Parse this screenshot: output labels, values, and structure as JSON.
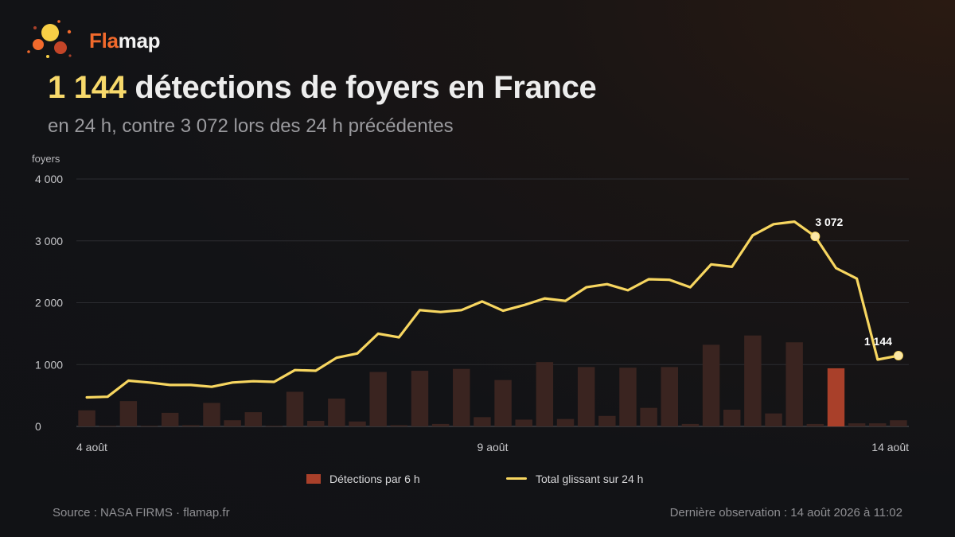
{
  "brand": {
    "name_part1": "Fla",
    "name_part2": "map",
    "logo_icon": "flamap-logo-icon"
  },
  "header": {
    "title_highlight": "1 144",
    "title_rest": " détections de foyers en France",
    "subtitle": "en 24 h, contre 3 072 lors des 24 h précédentes"
  },
  "colors": {
    "bar": "#a9402a",
    "bar_muted": "#3a2420",
    "line": "#f7d660",
    "grid": "#2c2d31",
    "accent": "#f26a2c"
  },
  "chart_data": {
    "type": "bar+line",
    "ylabel": "foyers",
    "ylim": [
      0,
      4000
    ],
    "yticks": [
      0,
      1000,
      2000,
      3000,
      4000
    ],
    "ytick_labels": [
      "0",
      "1 000",
      "2 000",
      "3 000",
      "4 000"
    ],
    "xtick_labels": [
      {
        "label": "4 août",
        "index": 0
      },
      {
        "label": "9 août",
        "index": 20
      },
      {
        "label": "14 août",
        "index": 40
      }
    ],
    "interval": "6 h",
    "series": [
      {
        "name": "Détections par 6 h",
        "type": "bar",
        "values": [
          260,
          10,
          410,
          10,
          220,
          20,
          380,
          100,
          230,
          10,
          560,
          90,
          450,
          80,
          880,
          20,
          900,
          40,
          930,
          150,
          750,
          110,
          1040,
          120,
          960,
          170,
          950,
          300,
          960,
          40,
          1320,
          270,
          1470,
          210,
          1360,
          40,
          940,
          50,
          50,
          100
        ],
        "highlighted_index": 36
      },
      {
        "name": "Total glissant sur 24 h",
        "type": "line",
        "values": [
          470,
          480,
          740,
          710,
          670,
          670,
          640,
          710,
          730,
          720,
          910,
          900,
          1110,
          1180,
          1500,
          1440,
          1880,
          1850,
          1880,
          2020,
          1870,
          1960,
          2070,
          2030,
          2250,
          2300,
          2200,
          2380,
          2370,
          2250,
          2620,
          2580,
          3090,
          3270,
          3310,
          3072,
          2560,
          2390,
          1080,
          1144
        ]
      }
    ],
    "annotations": [
      {
        "label": "3 072",
        "index": 35,
        "value": 3072
      },
      {
        "label": "1 144",
        "index": 39,
        "value": 1144
      }
    ]
  },
  "legend": {
    "bar_label": "Détections par 6 h",
    "line_label": "Total glissant sur 24 h"
  },
  "footer": {
    "source": "Source : NASA FIRMS · flamap.fr",
    "last_obs": "Dernière observation : 14 août 2026 à 11:02"
  }
}
